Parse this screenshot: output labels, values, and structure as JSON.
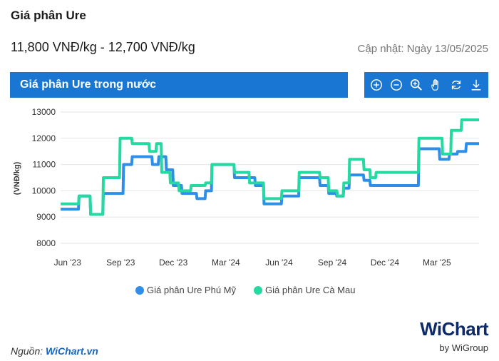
{
  "header": {
    "title": "Giá phân Ure",
    "price_range": "11,800 VNĐ/kg - 12,700 VNĐ/kg",
    "updated": "Cập nhật: Ngày 13/05/2025"
  },
  "panel": {
    "title": "Giá phân Ure trong nước",
    "color": "#1976d2"
  },
  "toolbar": {
    "icons": [
      "zoom-in-icon",
      "zoom-out-icon",
      "magnify-icon",
      "pan-hand-icon",
      "reset-icon",
      "download-icon"
    ]
  },
  "footer": {
    "source_label": "Nguồn:",
    "source_name": "WiChart.vn",
    "logo_text": "WiChart",
    "logo_sub": "by WiGroup"
  },
  "chart_data": {
    "type": "line",
    "ylabel": "(VNĐ/kg)",
    "xlabel": "",
    "ylim": [
      8000,
      13000
    ],
    "yticks": [
      8000,
      9000,
      10000,
      11000,
      12000,
      13000
    ],
    "xticks": [
      "Jun '23",
      "Sep '23",
      "Dec '23",
      "Mar '24",
      "Jun '24",
      "Sep '24",
      "Dec '24",
      "Mar '25"
    ],
    "grid": true,
    "legend": "bottom",
    "series": [
      {
        "name": "Giá phân Ure Phú Mỹ",
        "color": "#2f8fe8",
        "points": [
          [
            "2023-05-20",
            9300
          ],
          [
            "2023-06-20",
            9300
          ],
          [
            "2023-06-21",
            9800
          ],
          [
            "2023-07-10",
            9800
          ],
          [
            "2023-07-11",
            9100
          ],
          [
            "2023-08-01",
            9100
          ],
          [
            "2023-08-02",
            9900
          ],
          [
            "2023-09-05",
            9900
          ],
          [
            "2023-09-06",
            11000
          ],
          [
            "2023-09-20",
            11000
          ],
          [
            "2023-09-21",
            11300
          ],
          [
            "2023-10-25",
            11300
          ],
          [
            "2023-10-26",
            11000
          ],
          [
            "2023-11-05",
            11000
          ],
          [
            "2023-11-06",
            11300
          ],
          [
            "2023-11-18",
            11300
          ],
          [
            "2023-11-19",
            10800
          ],
          [
            "2023-11-30",
            10800
          ],
          [
            "2023-12-01",
            10200
          ],
          [
            "2023-12-15",
            10200
          ],
          [
            "2023-12-16",
            9900
          ],
          [
            "2024-01-10",
            9900
          ],
          [
            "2024-01-11",
            9700
          ],
          [
            "2024-01-25",
            9700
          ],
          [
            "2024-01-26",
            10000
          ],
          [
            "2024-02-05",
            10000
          ],
          [
            "2024-02-06",
            11000
          ],
          [
            "2024-03-15",
            11000
          ],
          [
            "2024-03-16",
            10500
          ],
          [
            "2024-04-20",
            10500
          ],
          [
            "2024-04-21",
            10200
          ],
          [
            "2024-05-05",
            10200
          ],
          [
            "2024-05-06",
            9500
          ],
          [
            "2024-06-05",
            9500
          ],
          [
            "2024-06-06",
            9800
          ],
          [
            "2024-07-05",
            9800
          ],
          [
            "2024-07-06",
            10500
          ],
          [
            "2024-08-10",
            10500
          ],
          [
            "2024-08-11",
            10200
          ],
          [
            "2024-08-25",
            10200
          ],
          [
            "2024-08-26",
            9900
          ],
          [
            "2024-09-08",
            9900
          ],
          [
            "2024-09-09",
            9800
          ],
          [
            "2024-09-20",
            9800
          ],
          [
            "2024-09-21",
            10100
          ],
          [
            "2024-09-30",
            10100
          ],
          [
            "2024-10-01",
            10600
          ],
          [
            "2024-10-25",
            10600
          ],
          [
            "2024-10-26",
            10400
          ],
          [
            "2024-11-05",
            10400
          ],
          [
            "2024-11-06",
            10200
          ],
          [
            "2025-01-28",
            10200
          ],
          [
            "2025-01-29",
            11600
          ],
          [
            "2025-03-05",
            11600
          ],
          [
            "2025-03-06",
            11200
          ],
          [
            "2025-03-22",
            11200
          ],
          [
            "2025-03-23",
            11400
          ],
          [
            "2025-04-05",
            11400
          ],
          [
            "2025-04-06",
            11500
          ],
          [
            "2025-04-20",
            11500
          ],
          [
            "2025-04-21",
            11800
          ],
          [
            "2025-05-13",
            11800
          ]
        ]
      },
      {
        "name": "Giá phân Ure Cà Mau",
        "color": "#25d9a0",
        "points": [
          [
            "2023-05-20",
            9500
          ],
          [
            "2023-06-20",
            9500
          ],
          [
            "2023-06-21",
            9800
          ],
          [
            "2023-07-10",
            9800
          ],
          [
            "2023-07-11",
            9100
          ],
          [
            "2023-08-01",
            9100
          ],
          [
            "2023-08-02",
            10500
          ],
          [
            "2023-08-30",
            10500
          ],
          [
            "2023-08-31",
            12000
          ],
          [
            "2023-09-20",
            12000
          ],
          [
            "2023-09-21",
            11800
          ],
          [
            "2023-10-20",
            11800
          ],
          [
            "2023-10-21",
            11500
          ],
          [
            "2023-11-01",
            11500
          ],
          [
            "2023-11-02",
            11800
          ],
          [
            "2023-11-10",
            11800
          ],
          [
            "2023-11-11",
            10700
          ],
          [
            "2023-11-25",
            10700
          ],
          [
            "2023-11-26",
            10300
          ],
          [
            "2023-12-10",
            10300
          ],
          [
            "2023-12-11",
            10000
          ],
          [
            "2023-12-31",
            10000
          ],
          [
            "2024-01-01",
            10200
          ],
          [
            "2024-01-25",
            10200
          ],
          [
            "2024-01-26",
            10300
          ],
          [
            "2024-02-05",
            10300
          ],
          [
            "2024-02-06",
            11000
          ],
          [
            "2024-03-15",
            11000
          ],
          [
            "2024-03-16",
            10700
          ],
          [
            "2024-04-10",
            10700
          ],
          [
            "2024-04-11",
            10300
          ],
          [
            "2024-05-05",
            10300
          ],
          [
            "2024-05-06",
            9700
          ],
          [
            "2024-06-05",
            9700
          ],
          [
            "2024-06-06",
            10000
          ],
          [
            "2024-07-05",
            10000
          ],
          [
            "2024-07-06",
            10700
          ],
          [
            "2024-08-10",
            10700
          ],
          [
            "2024-08-11",
            10500
          ],
          [
            "2024-08-25",
            10500
          ],
          [
            "2024-08-26",
            10000
          ],
          [
            "2024-09-08",
            10000
          ],
          [
            "2024-09-09",
            10000
          ],
          [
            "2024-09-10",
            9800
          ],
          [
            "2024-09-20",
            9800
          ],
          [
            "2024-09-21",
            10300
          ],
          [
            "2024-09-30",
            10300
          ],
          [
            "2024-10-01",
            11200
          ],
          [
            "2024-10-25",
            11200
          ],
          [
            "2024-10-26",
            10800
          ],
          [
            "2024-11-05",
            10800
          ],
          [
            "2024-11-06",
            10500
          ],
          [
            "2024-11-15",
            10500
          ],
          [
            "2024-11-16",
            10700
          ],
          [
            "2025-01-28",
            10700
          ],
          [
            "2025-01-29",
            12000
          ],
          [
            "2025-03-10",
            12000
          ],
          [
            "2025-03-11",
            11400
          ],
          [
            "2025-03-25",
            11400
          ],
          [
            "2025-03-26",
            12300
          ],
          [
            "2025-04-12",
            12300
          ],
          [
            "2025-04-13",
            12700
          ],
          [
            "2025-05-13",
            12700
          ]
        ]
      }
    ]
  }
}
